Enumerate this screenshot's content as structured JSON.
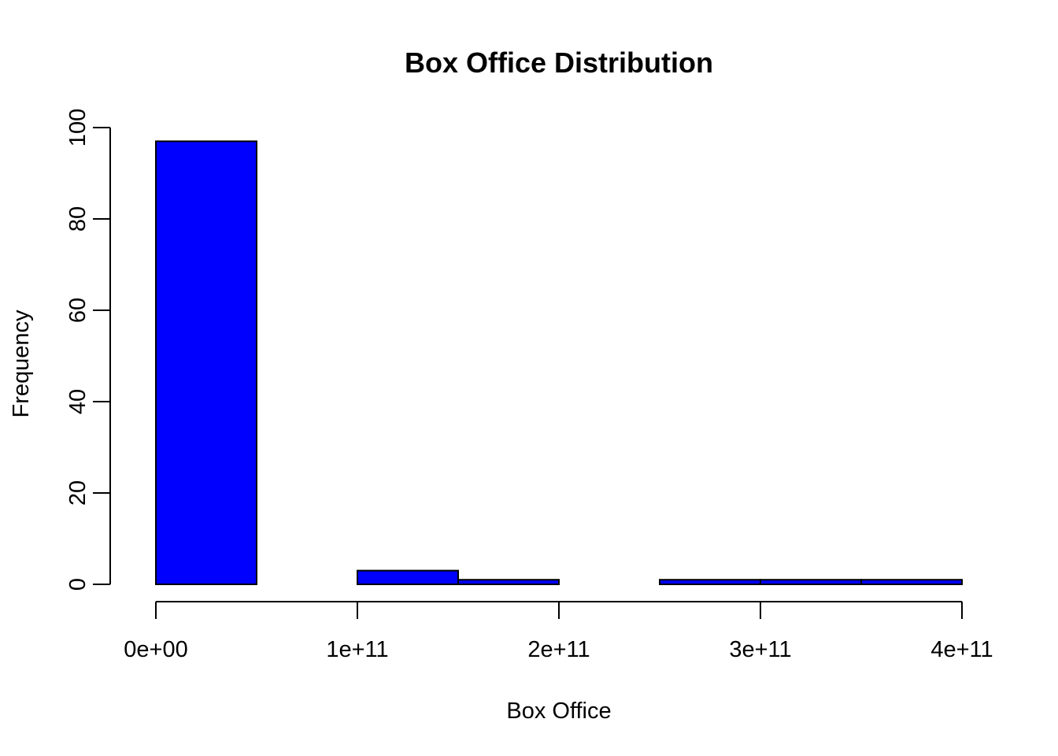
{
  "chart_data": {
    "type": "bar",
    "title": "Box Office Distribution",
    "xlabel": "Box Office",
    "ylabel": "Frequency",
    "bar_color": "#0000ff",
    "xlim": [
      0,
      400000000000
    ],
    "ylim": [
      0,
      100
    ],
    "x_ticks": [
      {
        "value": 0,
        "label": "0e+00"
      },
      {
        "value": 100000000000,
        "label": "1e+11"
      },
      {
        "value": 200000000000,
        "label": "2e+11"
      },
      {
        "value": 300000000000,
        "label": "3e+11"
      },
      {
        "value": 400000000000,
        "label": "4e+11"
      }
    ],
    "y_ticks": [
      {
        "value": 0,
        "label": "0"
      },
      {
        "value": 20,
        "label": "20"
      },
      {
        "value": 40,
        "label": "40"
      },
      {
        "value": 60,
        "label": "60"
      },
      {
        "value": 80,
        "label": "80"
      },
      {
        "value": 100,
        "label": "100"
      }
    ],
    "bins": [
      {
        "start": 0,
        "end": 50000000000,
        "count": 97
      },
      {
        "start": 50000000000,
        "end": 100000000000,
        "count": 0
      },
      {
        "start": 100000000000,
        "end": 150000000000,
        "count": 3
      },
      {
        "start": 150000000000,
        "end": 200000000000,
        "count": 1
      },
      {
        "start": 200000000000,
        "end": 250000000000,
        "count": 0
      },
      {
        "start": 250000000000,
        "end": 300000000000,
        "count": 1
      },
      {
        "start": 300000000000,
        "end": 350000000000,
        "count": 1
      },
      {
        "start": 350000000000,
        "end": 400000000000,
        "count": 1
      }
    ],
    "grid": false,
    "legend": "none"
  }
}
